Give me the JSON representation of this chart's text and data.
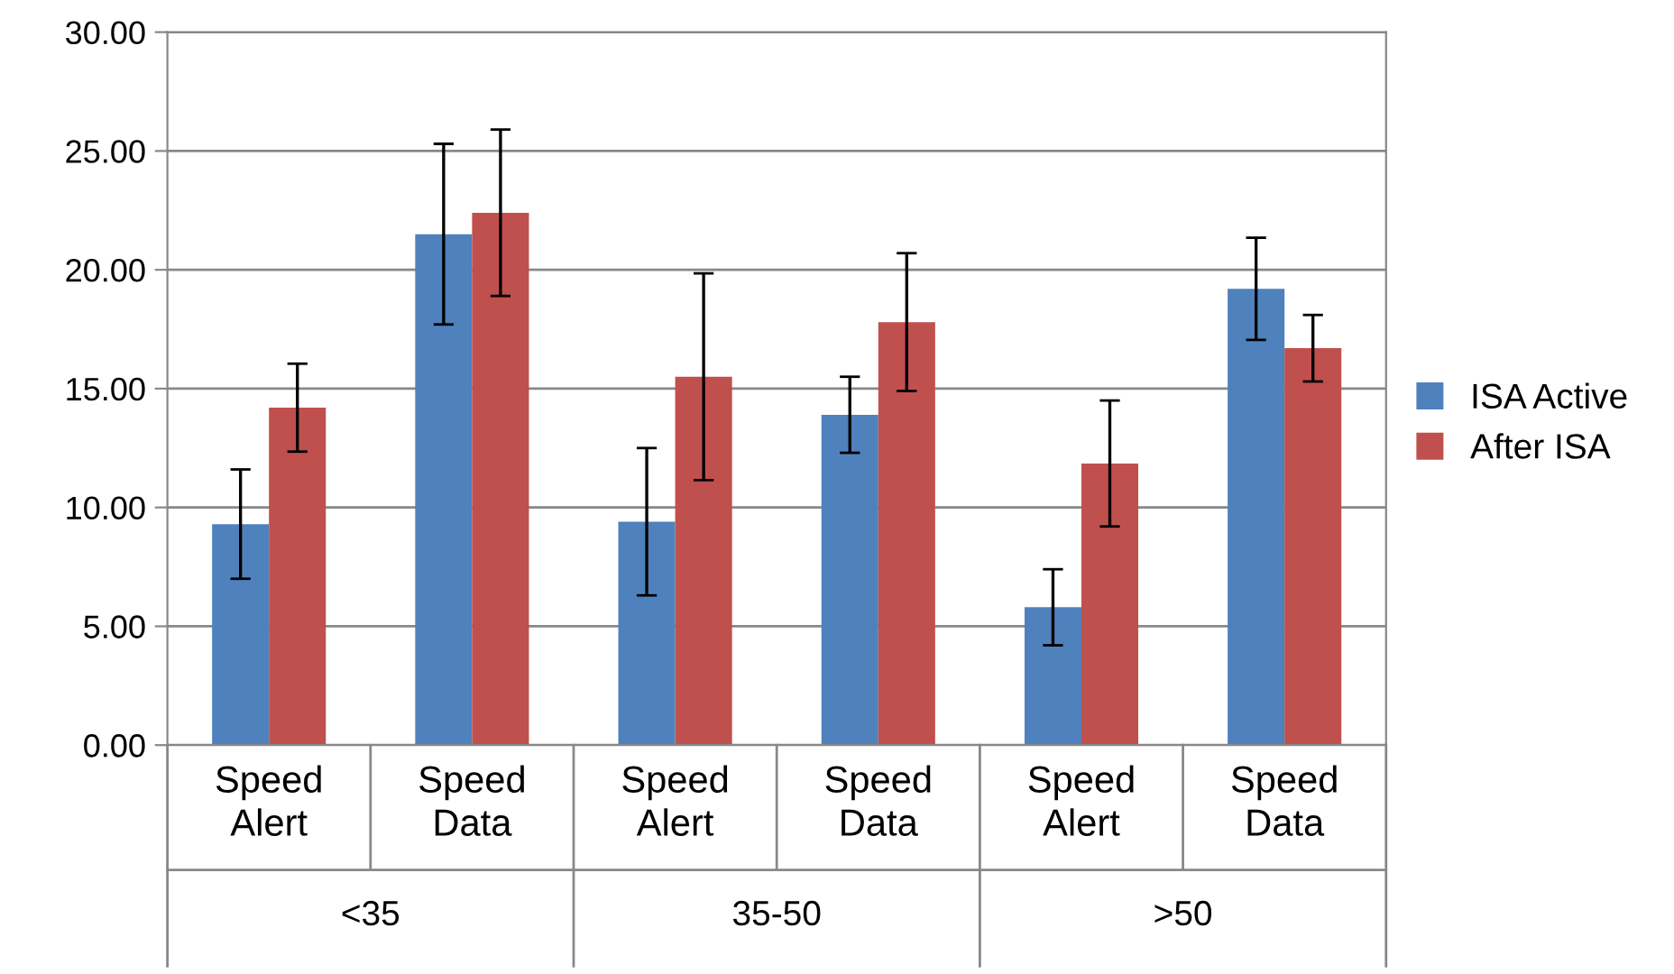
{
  "chart_data": {
    "type": "bar",
    "categories": [
      "Speed\nAlert",
      "Speed\nData",
      "Speed\nAlert",
      "Speed\nData",
      "Speed\nAlert",
      "Speed\nData"
    ],
    "series": [
      {
        "name": "ISA Active",
        "color": "#4f81bd",
        "values": [
          9.3,
          21.5,
          9.4,
          13.9,
          5.8,
          19.2
        ],
        "errors": [
          2.3,
          3.8,
          3.1,
          1.6,
          1.6,
          2.15
        ]
      },
      {
        "name": "After ISA",
        "color": "#c0504d",
        "values": [
          14.2,
          22.4,
          15.5,
          17.8,
          11.85,
          16.7
        ],
        "errors": [
          1.85,
          3.5,
          4.35,
          2.9,
          2.65,
          1.4
        ]
      }
    ],
    "annotations": [
      "<35",
      "35-50",
      ">50"
    ],
    "ylim": [
      0,
      30
    ],
    "yticks": [
      {
        "value": 0,
        "label": "0.00"
      },
      {
        "value": 5,
        "label": "5.00"
      },
      {
        "value": 10,
        "label": "10.00"
      },
      {
        "value": 15,
        "label": "15.00"
      },
      {
        "value": 20,
        "label": "20.00"
      },
      {
        "value": 25,
        "label": "25.00"
      },
      {
        "value": 30,
        "label": "30.00"
      }
    ],
    "grid": "y",
    "legend": "right"
  }
}
